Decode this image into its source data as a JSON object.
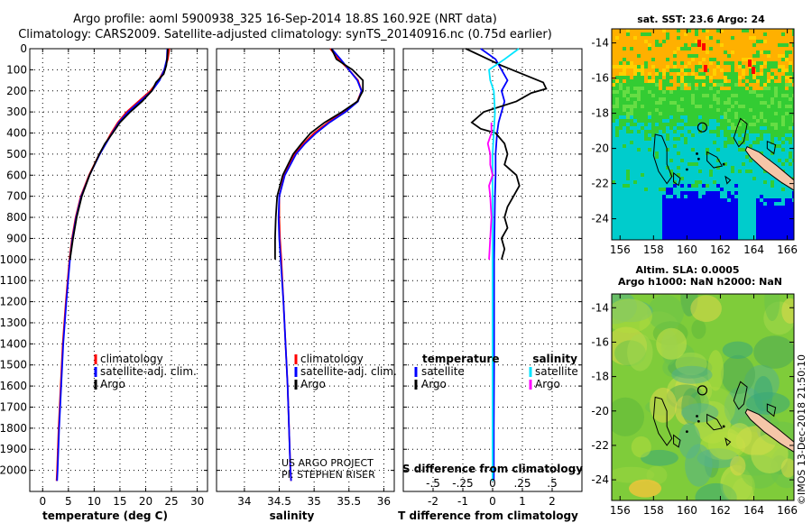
{
  "title": {
    "line1": "Argo profile: aoml 5900938_325 16-Sep-2014 18.8S 160.92E (NRT data)",
    "line2": "Climatology: CARS2009. Satellite-adjusted climatology: synTS_20140916.nc (0.75d earlier)"
  },
  "credit": "©IMOS 13-Dec-2018 21:50:10",
  "colors": {
    "climatology": "#ff0000",
    "satellite": "#0000ff",
    "argo": "#000000",
    "satellite_salinity": "#00e5ff",
    "argo_salinity": "#ff00ff",
    "sst_orange": "#ffb000",
    "sst_green": "#33cc33",
    "sst_cyan": "#00cccc",
    "sst_blue": "#0000ee",
    "land": "#f5c6a8"
  },
  "chart_data": [
    {
      "id": "temperature",
      "type": "line",
      "xlabel": "temperature (deg C)",
      "ylabel": "",
      "xlim": [
        -2.5,
        32
      ],
      "ylim": [
        2100,
        0
      ],
      "xticks": [
        0,
        5,
        10,
        15,
        20,
        25,
        30
      ],
      "yticks": [
        0,
        100,
        200,
        300,
        400,
        500,
        600,
        700,
        800,
        900,
        1000,
        1100,
        1200,
        1300,
        1400,
        1500,
        1600,
        1700,
        1800,
        1900,
        2000
      ],
      "legend": [
        "climatology",
        "satellite-adj. clim.",
        "Argo"
      ],
      "legend_position": "lower-center",
      "series": [
        {
          "name": "climatology",
          "color": "#ff0000",
          "depth": [
            0,
            50,
            100,
            150,
            200,
            250,
            300,
            350,
            400,
            450,
            500,
            600,
            700,
            800,
            900,
            1000,
            1200,
            1400,
            1600,
            1800,
            2000,
            2050
          ],
          "values": [
            24.6,
            24.3,
            23.6,
            22.5,
            20.9,
            18.6,
            16.3,
            14.6,
            13.3,
            12.2,
            11.0,
            9.0,
            7.4,
            6.4,
            5.7,
            5.2,
            4.5,
            3.9,
            3.5,
            3.1,
            2.8,
            2.7
          ]
        },
        {
          "name": "satellite-adj. clim.",
          "color": "#0000ff",
          "depth": [
            0,
            50,
            100,
            150,
            200,
            250,
            300,
            350,
            400,
            450,
            500,
            600,
            700,
            800,
            900,
            1000,
            1200,
            1400,
            1600,
            1800,
            2000,
            2050
          ],
          "values": [
            24.2,
            24.1,
            23.6,
            22.7,
            21.2,
            18.9,
            16.6,
            14.8,
            13.5,
            12.3,
            11.1,
            9.1,
            7.5,
            6.5,
            5.8,
            5.3,
            4.6,
            4.0,
            3.6,
            3.2,
            2.9,
            2.8
          ]
        },
        {
          "name": "Argo",
          "color": "#000000",
          "depth": [
            0,
            40,
            80,
            120,
            160,
            200,
            250,
            300,
            350,
            400,
            450,
            500,
            600,
            700,
            800,
            900,
            1000
          ],
          "values": [
            24.3,
            24.2,
            24.0,
            23.5,
            22.0,
            21.2,
            19.3,
            17.0,
            15.0,
            13.6,
            12.1,
            11.0,
            9.1,
            7.6,
            6.6,
            5.9,
            5.3
          ]
        }
      ]
    },
    {
      "id": "salinity",
      "type": "line",
      "xlabel": "salinity",
      "ylabel": "",
      "xlim": [
        33.6,
        36.15
      ],
      "ylim": [
        2100,
        0
      ],
      "xticks": [
        34,
        34.5,
        35,
        35.5,
        36
      ],
      "legend": [
        "climatology",
        "satellite-adj. clim.",
        "Argo"
      ],
      "legend_position": "lower-right",
      "annotation": [
        "US ARGO PROJECT",
        "PI: STEPHEN RISER"
      ],
      "series": [
        {
          "name": "climatology",
          "color": "#ff0000",
          "depth": [
            0,
            50,
            100,
            150,
            200,
            250,
            300,
            350,
            400,
            450,
            500,
            600,
            700,
            800,
            900,
            1000,
            1200,
            1400,
            1600,
            1800,
            2000,
            2050
          ],
          "values": [
            35.23,
            35.35,
            35.5,
            35.63,
            35.68,
            35.62,
            35.42,
            35.2,
            35.0,
            34.85,
            34.72,
            34.57,
            34.5,
            34.5,
            34.51,
            34.53,
            34.56,
            34.59,
            34.62,
            34.64,
            34.66,
            34.67
          ]
        },
        {
          "name": "satellite-adj. clim.",
          "color": "#0000ff",
          "depth": [
            0,
            50,
            100,
            150,
            200,
            250,
            300,
            350,
            400,
            450,
            500,
            600,
            700,
            800,
            900,
            1000,
            1200,
            1400,
            1600,
            1800,
            2000,
            2050
          ],
          "values": [
            35.25,
            35.38,
            35.5,
            35.62,
            35.68,
            35.63,
            35.45,
            35.22,
            35.03,
            34.87,
            34.74,
            34.58,
            34.5,
            34.49,
            34.5,
            34.52,
            34.56,
            34.59,
            34.62,
            34.64,
            34.66,
            34.67
          ]
        },
        {
          "name": "Argo",
          "color": "#000000",
          "depth": [
            0,
            50,
            100,
            150,
            200,
            250,
            300,
            350,
            400,
            450,
            500,
            600,
            700,
            800,
            900,
            1000
          ],
          "values": [
            35.25,
            35.32,
            35.55,
            35.7,
            35.7,
            35.62,
            35.4,
            35.15,
            34.95,
            34.82,
            34.7,
            34.55,
            34.47,
            34.45,
            34.44,
            34.44
          ]
        }
      ]
    },
    {
      "id": "difference",
      "type": "line",
      "xlabel": "T difference from climatology",
      "xlabel2": "S difference from climatology",
      "ylabel": "",
      "xlim": [
        -3,
        3
      ],
      "ylim": [
        2100,
        0
      ],
      "xticks": [
        -2,
        -1,
        0,
        1,
        2
      ],
      "xticks2": [
        -0.5,
        -0.25,
        0,
        0.25,
        0.5
      ],
      "legend_temperature": {
        "heading": "temperature",
        "items": [
          "satellite",
          "Argo"
        ]
      },
      "legend_salinity": {
        "heading": "salinity",
        "items": [
          "satellite",
          "Argo"
        ]
      },
      "series": [
        {
          "name": "temperature satellite",
          "color": "#0000ff",
          "depth": [
            0,
            50,
            100,
            150,
            200,
            250,
            300,
            350,
            400,
            500,
            600,
            700,
            800,
            900,
            1000,
            1200,
            1500,
            1800,
            2050
          ],
          "values": [
            -0.4,
            0.1,
            0.3,
            0.5,
            0.3,
            0.4,
            0.3,
            0.2,
            0.15,
            0.1,
            0.1,
            0.08,
            0.07,
            0.06,
            0.05,
            0.05,
            0.05,
            0.04,
            0.04
          ]
        },
        {
          "name": "temperature Argo",
          "color": "#000000",
          "depth": [
            0,
            40,
            80,
            120,
            160,
            190,
            210,
            250,
            300,
            350,
            380,
            400,
            450,
            500,
            550,
            600,
            650,
            700,
            750,
            800,
            850,
            900,
            950,
            1000
          ],
          "values": [
            -0.9,
            -0.3,
            0.3,
            1.0,
            1.7,
            1.8,
            1.3,
            0.8,
            -0.3,
            -0.7,
            -0.4,
            0.1,
            0.4,
            0.5,
            0.4,
            0.8,
            0.9,
            0.7,
            0.5,
            0.4,
            0.5,
            0.3,
            0.4,
            0.3
          ]
        },
        {
          "name": "salinity satellite",
          "color": "#00e5ff",
          "depth": [
            0,
            50,
            100,
            150,
            200,
            300,
            400,
            500,
            700,
            1000,
            1500,
            2050
          ],
          "values": [
            0.22,
            0.1,
            -0.03,
            -0.02,
            0.01,
            0.02,
            0.01,
            0.0,
            0.0,
            0.0,
            0.0,
            0.0
          ]
        },
        {
          "name": "salinity Argo",
          "color": "#ff00ff",
          "depth": [
            350,
            400,
            450,
            500,
            550,
            600,
            650,
            700,
            800,
            900,
            1000
          ],
          "values": [
            -0.01,
            -0.01,
            -0.04,
            -0.02,
            -0.02,
            0.0,
            -0.03,
            -0.02,
            -0.01,
            -0.02,
            -0.03
          ]
        }
      ]
    }
  ],
  "maps": [
    {
      "id": "sst-map",
      "title": "sat. SST: 23.6 Argo: 24",
      "lon_ticks": [
        156,
        158,
        160,
        162,
        164,
        166
      ],
      "lat_ticks": [
        -14,
        -16,
        -18,
        -20,
        -22,
        -24
      ],
      "lon_range": [
        155.5,
        166.4
      ],
      "lat_range": [
        -25.2,
        -13.2
      ],
      "argo_position": {
        "lon": 160.92,
        "lat": -18.8
      }
    },
    {
      "id": "sla-map",
      "title": "Altim. SLA: 0.0005",
      "subtitle": "Argo h1000: NaN h2000: NaN",
      "lon_ticks": [
        156,
        158,
        160,
        162,
        164,
        166
      ],
      "lat_ticks": [
        -14,
        -16,
        -18,
        -20,
        -22,
        -24
      ],
      "lon_range": [
        155.5,
        166.4
      ],
      "lat_range": [
        -25.2,
        -13.2
      ],
      "argo_position": {
        "lon": 160.92,
        "lat": -18.8
      }
    }
  ]
}
